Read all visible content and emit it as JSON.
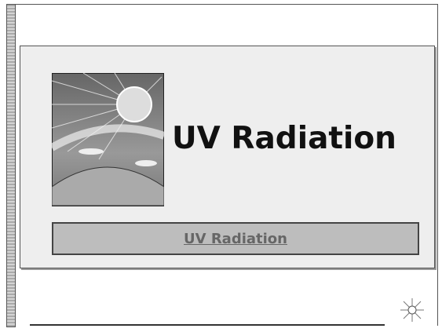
{
  "slide": {
    "title": "UV Radiation",
    "link": "UV Radiation"
  }
}
